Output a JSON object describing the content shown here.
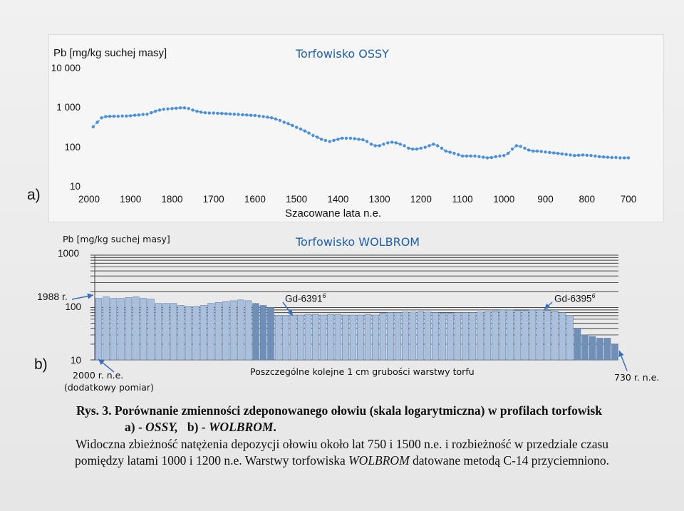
{
  "chart_data": [
    {
      "type": "line",
      "panel": "a)",
      "title": "Torfowisko OSSY",
      "ylabel": "Pb [mg/kg  suchej masy]",
      "xlabel": "Szacowane lata  n.e.",
      "yscale": "log",
      "ylim": [
        10,
        10000
      ],
      "xlim": [
        2000,
        700
      ],
      "x_ticks": [
        "2000",
        "1900",
        "1800",
        "1700",
        "1600",
        "1500",
        "1400",
        "1300",
        "1200",
        "1100",
        "1000",
        "900",
        "800",
        "700"
      ],
      "y_ticks": [
        "10 000",
        "1 000",
        "100",
        "10"
      ],
      "series": [
        {
          "name": "Pb",
          "color": "#4a90d9",
          "x": [
            1990,
            1980,
            1970,
            1960,
            1950,
            1940,
            1930,
            1920,
            1910,
            1900,
            1890,
            1880,
            1870,
            1860,
            1850,
            1840,
            1830,
            1820,
            1810,
            1800,
            1790,
            1780,
            1770,
            1760,
            1750,
            1740,
            1730,
            1720,
            1710,
            1700,
            1690,
            1680,
            1670,
            1660,
            1650,
            1640,
            1630,
            1620,
            1610,
            1600,
            1590,
            1580,
            1570,
            1560,
            1550,
            1540,
            1530,
            1520,
            1510,
            1500,
            1490,
            1480,
            1470,
            1460,
            1450,
            1440,
            1430,
            1420,
            1410,
            1400,
            1390,
            1380,
            1370,
            1360,
            1350,
            1340,
            1330,
            1320,
            1310,
            1300,
            1290,
            1280,
            1270,
            1260,
            1250,
            1240,
            1230,
            1220,
            1210,
            1200,
            1190,
            1180,
            1170,
            1160,
            1150,
            1140,
            1130,
            1120,
            1110,
            1100,
            1090,
            1080,
            1070,
            1060,
            1050,
            1040,
            1030,
            1020,
            1010,
            1000,
            990,
            980,
            970,
            960,
            950,
            940,
            930,
            920,
            910,
            900,
            890,
            880,
            870,
            860,
            850,
            840,
            830,
            820,
            810,
            800,
            790,
            780,
            770,
            760,
            750,
            740,
            730,
            720,
            710,
            700
          ],
          "y": [
            330,
            430,
            560,
            600,
            610,
            610,
            610,
            620,
            620,
            630,
            650,
            660,
            680,
            690,
            750,
            820,
            880,
            920,
            940,
            960,
            980,
            1000,
            1000,
            960,
            880,
            820,
            780,
            750,
            740,
            740,
            730,
            720,
            710,
            700,
            690,
            680,
            670,
            660,
            650,
            640,
            620,
            600,
            580,
            560,
            520,
            480,
            430,
            400,
            360,
            320,
            290,
            260,
            230,
            200,
            180,
            160,
            150,
            140,
            150,
            160,
            170,
            170,
            170,
            165,
            160,
            155,
            140,
            120,
            110,
            110,
            120,
            130,
            135,
            130,
            120,
            110,
            95,
            90,
            90,
            95,
            100,
            110,
            120,
            110,
            95,
            80,
            75,
            70,
            65,
            60,
            60,
            60,
            60,
            58,
            56,
            54,
            55,
            58,
            60,
            62,
            70,
            90,
            110,
            105,
            95,
            85,
            80,
            80,
            78,
            76,
            74,
            72,
            70,
            68,
            66,
            64,
            62,
            63,
            64,
            63,
            62,
            60,
            58,
            57,
            56,
            55,
            55,
            54,
            54,
            54
          ]
        }
      ]
    },
    {
      "type": "bar",
      "panel": "b)",
      "title": "Torfowisko WOLBROM",
      "ylabel": "Pb [mg/kg suchej masy]",
      "xlabel": "Poszczególne kolejne 1 cm grubości warstwy torfu",
      "yscale": "log",
      "ylim": [
        10,
        1000
      ],
      "y_ticks": [
        "1000",
        "100",
        "10"
      ],
      "annotations": [
        "1988 r.",
        "Gd-6391",
        "6",
        "Gd-6395",
        "6",
        "2000 r. n.e.",
        "(dodatkowy pomiar)",
        "730 r. n.e."
      ],
      "series": [
        {
          "name": "Pb",
          "color_light": "#a9bfdc",
          "color_dark": "#6f8fb8",
          "values": [
            150,
            160,
            150,
            150,
            155,
            160,
            150,
            145,
            120,
            120,
            120,
            110,
            105,
            105,
            110,
            120,
            125,
            130,
            135,
            140,
            135,
            120,
            110,
            100,
            70,
            70,
            72,
            72,
            74,
            74,
            72,
            74,
            74,
            72,
            72,
            72,
            74,
            72,
            78,
            80,
            80,
            82,
            82,
            84,
            82,
            80,
            78,
            78,
            80,
            80,
            80,
            82,
            84,
            86,
            90,
            90,
            88,
            88,
            90,
            90,
            88,
            86,
            80,
            70,
            40,
            30,
            28,
            26,
            26,
            20
          ]
        }
      ]
    }
  ],
  "caption": {
    "line1_prefix": "Rys. 3.",
    "line1_text": "Porównanie zmienności zdeponowanego ołowiu (skala logarytmiczna)  w profilach torfowisk",
    "line2_a": "a)  -",
    "line2_ossy": "OSSY,",
    "line2_b": "b)  -",
    "line2_wolbrom": "WOLBROM",
    "line2_end": ".",
    "line3": "Widoczna zbieżność  natężenia depozycji ołowiu około lat 750 i 1500 n.e. i rozbieżność w  przedziale czasu",
    "line4_a": "pomiędzy  latami 1000 i 1200 n.e. Warstwy torfowiska",
    "line4_wolbrom": "WOLBROM",
    "line4_b": "datowane metodą C-14 przyciemniono."
  },
  "colors": {
    "title": "#1f5fa8",
    "line_a": "#4a90d9",
    "bar_light": "#a9bfdc",
    "bar_dark": "#6f8fb8",
    "arrow": "#3a6fb8"
  }
}
